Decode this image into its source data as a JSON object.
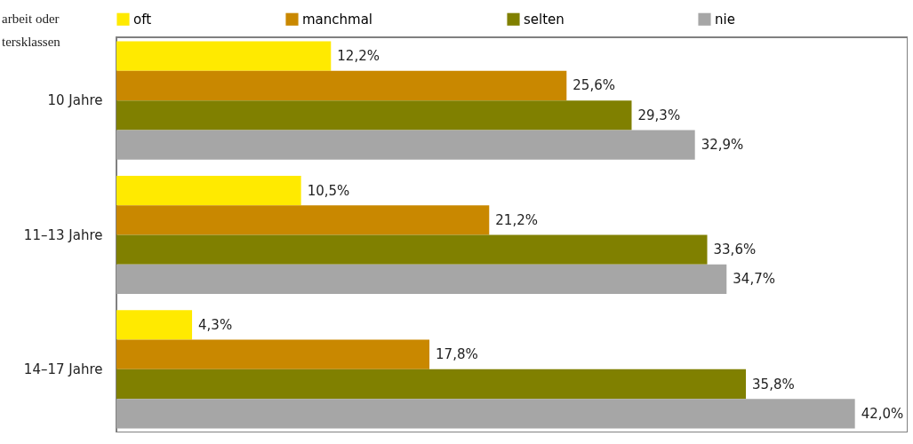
{
  "chart_data": {
    "type": "bar",
    "orientation": "horizontal",
    "title": "arbeit oder\ntersklassen",
    "categories": [
      "10 Jahre",
      "11–13 Jahre",
      "14–17 Jahre"
    ],
    "series": [
      {
        "name": "oft",
        "color": "#ffea00",
        "values": [
          12.2,
          10.5,
          4.3
        ],
        "value_labels": [
          "12,2%",
          "10,5%",
          "4,3%"
        ]
      },
      {
        "name": "manchmal",
        "color": "#c98800",
        "values": [
          25.6,
          21.2,
          17.8
        ],
        "value_labels": [
          "25,6%",
          "21,2%",
          "17,8%"
        ]
      },
      {
        "name": "selten",
        "color": "#808000",
        "values": [
          29.3,
          33.6,
          35.8
        ],
        "value_labels": [
          "29,3%",
          "33,6%",
          "35,8%"
        ]
      },
      {
        "name": "nie",
        "color": "#a6a6a6",
        "values": [
          32.9,
          34.7,
          42.0
        ],
        "value_labels": [
          "32,9%",
          "34,7%",
          "42,0%"
        ]
      }
    ],
    "xlim": [
      0,
      45
    ],
    "tick_labels": "y",
    "legend": "top"
  }
}
